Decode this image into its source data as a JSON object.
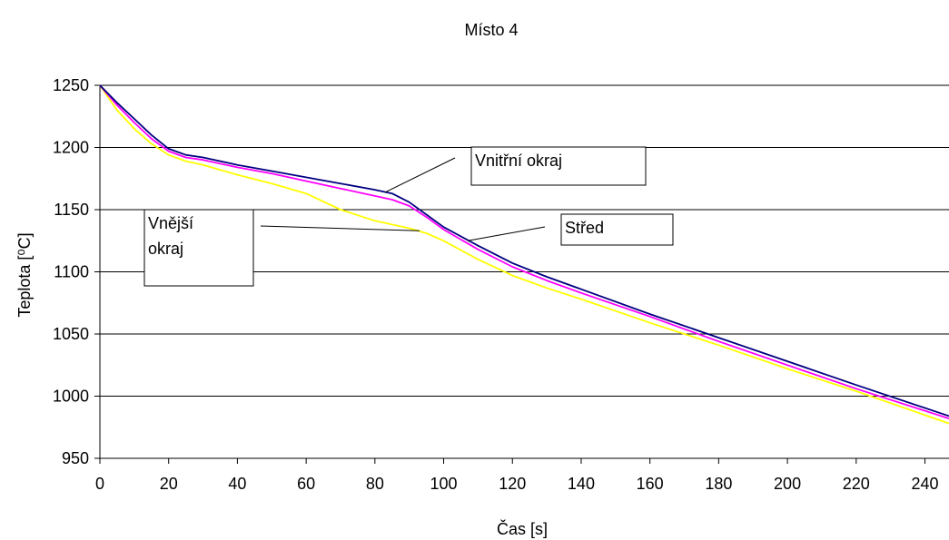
{
  "chart_data": {
    "type": "line",
    "title": "Místo 4",
    "xlabel": "Čas [s]",
    "ylabel": "Teplota [⁰C]",
    "xlim": [
      0,
      247
    ],
    "ylim": [
      950,
      1250
    ],
    "xticks": [
      0,
      20,
      40,
      60,
      80,
      100,
      120,
      140,
      160,
      180,
      200,
      220,
      240
    ],
    "yticks": [
      950,
      1000,
      1050,
      1100,
      1150,
      1200,
      1250
    ],
    "grid": "horizontal",
    "series": [
      {
        "name": "Vnitřní okraj",
        "color": "#000080",
        "x": [
          0,
          5,
          10,
          15,
          20,
          25,
          30,
          40,
          50,
          60,
          70,
          80,
          85,
          90,
          95,
          100,
          110,
          120,
          130,
          140,
          160,
          180,
          200,
          220,
          247
        ],
        "y": [
          1250,
          1236,
          1223,
          1210,
          1199,
          1194,
          1192,
          1186,
          1181,
          1176,
          1171,
          1166,
          1163,
          1156,
          1146,
          1136,
          1121,
          1107,
          1096,
          1086,
          1066,
          1047,
          1028,
          1009,
          984
        ]
      },
      {
        "name": "Střed",
        "color": "#ff00ff",
        "x": [
          0,
          5,
          10,
          15,
          20,
          25,
          30,
          40,
          50,
          60,
          70,
          80,
          85,
          90,
          95,
          100,
          110,
          120,
          130,
          140,
          160,
          180,
          200,
          220,
          247
        ],
        "y": [
          1250,
          1234,
          1220,
          1207,
          1197,
          1192,
          1190,
          1184,
          1179,
          1173,
          1167,
          1161,
          1158,
          1153,
          1144,
          1134,
          1118,
          1104,
          1093,
          1083,
          1064,
          1044,
          1025,
          1006,
          982
        ]
      },
      {
        "name": "Vnější okraj",
        "color": "#ffff00",
        "x": [
          0,
          5,
          10,
          15,
          20,
          25,
          30,
          40,
          50,
          60,
          70,
          80,
          90,
          95,
          100,
          110,
          120,
          130,
          140,
          160,
          180,
          200,
          220,
          247
        ],
        "y": [
          1250,
          1230,
          1215,
          1203,
          1194,
          1189,
          1186,
          1178,
          1171,
          1163,
          1150,
          1141,
          1135,
          1131,
          1125,
          1110,
          1097,
          1087,
          1078,
          1059,
          1041,
          1022,
          1004,
          978
        ]
      }
    ],
    "annotations": [
      {
        "text": "Vnitřní okraj",
        "lines": [
          "Vnitřní okraj"
        ],
        "series": "Vnitřní okraj",
        "point": [
          83,
          1164
        ]
      },
      {
        "text": "Střed",
        "lines": [
          "Střed"
        ],
        "series": "Střed",
        "point": [
          107,
          1125
        ]
      },
      {
        "text": "Vnější okraj",
        "lines": [
          "Vnější",
          "okraj"
        ],
        "series": "Vnější okraj",
        "point": [
          93,
          1133
        ]
      }
    ]
  }
}
